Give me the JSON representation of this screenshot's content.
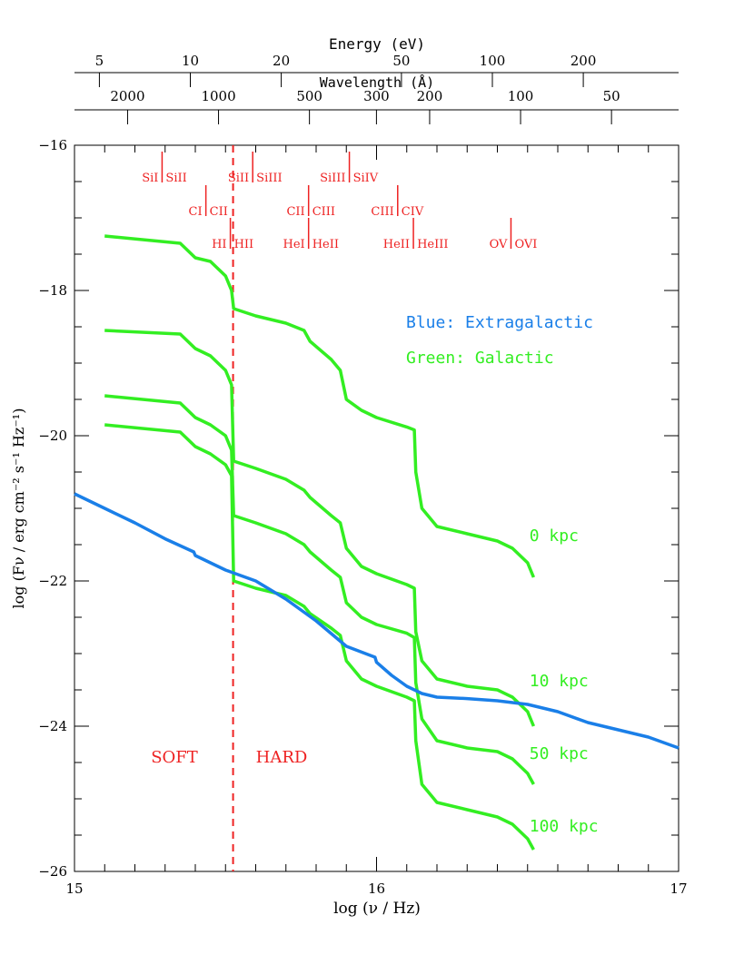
{
  "chart_data": {
    "type": "line",
    "title": "",
    "xlabel": "log (ν / Hz)",
    "ylabel": "log (Fν / erg cm⁻² s⁻¹ Hz⁻¹)",
    "xlim": [
      15,
      17
    ],
    "ylim": [
      -26,
      -16
    ],
    "x_ticks_major": [
      15,
      16,
      17
    ],
    "y_ticks_major": [
      -16,
      -18,
      -20,
      -22,
      -24,
      -26
    ],
    "grid": false,
    "top_axis_energy": {
      "label": "Energy (eV)",
      "ticks": [
        "5",
        "10",
        "20",
        "50",
        "100",
        "200"
      ],
      "values_ev": [
        5,
        10,
        20,
        50,
        100,
        200
      ]
    },
    "top_axis_wavelength": {
      "label": "Wavelength (Å)",
      "ticks": [
        "2000",
        "1000",
        "500",
        "300",
        "200",
        "100",
        "50"
      ],
      "values_angstrom": [
        2000,
        1000,
        500,
        300,
        200,
        100,
        50
      ]
    },
    "legend": [
      {
        "text": "Blue: Extragalactic",
        "color": "#1a7fe8"
      },
      {
        "text": "Green: Galactic",
        "color": "#33ee22"
      }
    ],
    "regions": {
      "divider_x": 15.525,
      "soft_label": "SOFT",
      "hard_label": "HARD"
    },
    "ion_edges": [
      {
        "left": "SiI",
        "right": "SiII",
        "x": 15.29,
        "row": 1
      },
      {
        "left": "SiII",
        "right": "SiIII",
        "x": 15.59,
        "row": 1
      },
      {
        "left": "SiIII",
        "right": "SiIV",
        "x": 15.91,
        "row": 1
      },
      {
        "left": "CI",
        "right": "CII",
        "x": 15.435,
        "row": 2
      },
      {
        "left": "CII",
        "right": "CIII",
        "x": 15.775,
        "row": 2
      },
      {
        "left": "CIII",
        "right": "CIV",
        "x": 16.07,
        "row": 2
      },
      {
        "left": "HI",
        "right": "HII",
        "x": 15.516,
        "row": 3
      },
      {
        "left": "HeI",
        "right": "HeII",
        "x": 15.775,
        "row": 3
      },
      {
        "left": "HeII",
        "right": "HeIII",
        "x": 16.122,
        "row": 3
      },
      {
        "left": "OV",
        "right": "OVI",
        "x": 16.445,
        "row": 3
      }
    ],
    "series": [
      {
        "name": "0 kpc",
        "color": "#33ee22",
        "label_pos": [
          16.5,
          -21.45
        ],
        "points": [
          [
            15.1,
            -17.25
          ],
          [
            15.35,
            -17.35
          ],
          [
            15.4,
            -17.55
          ],
          [
            15.45,
            -17.6
          ],
          [
            15.5,
            -17.8
          ],
          [
            15.52,
            -18.0
          ],
          [
            15.527,
            -18.25
          ],
          [
            15.6,
            -18.35
          ],
          [
            15.7,
            -18.45
          ],
          [
            15.76,
            -18.55
          ],
          [
            15.78,
            -18.7
          ],
          [
            15.85,
            -18.95
          ],
          [
            15.88,
            -19.1
          ],
          [
            15.9,
            -19.5
          ],
          [
            15.95,
            -19.65
          ],
          [
            16.0,
            -19.75
          ],
          [
            16.1,
            -19.88
          ],
          [
            16.125,
            -19.92
          ],
          [
            16.13,
            -20.5
          ],
          [
            16.15,
            -21.0
          ],
          [
            16.2,
            -21.25
          ],
          [
            16.3,
            -21.35
          ],
          [
            16.4,
            -21.45
          ],
          [
            16.45,
            -21.55
          ],
          [
            16.5,
            -21.75
          ],
          [
            16.52,
            -21.95
          ]
        ]
      },
      {
        "name": "10 kpc",
        "color": "#33ee22",
        "label_pos": [
          16.5,
          -23.45
        ],
        "points": [
          [
            15.1,
            -18.55
          ],
          [
            15.35,
            -18.6
          ],
          [
            15.4,
            -18.8
          ],
          [
            15.45,
            -18.9
          ],
          [
            15.5,
            -19.1
          ],
          [
            15.52,
            -19.3
          ],
          [
            15.527,
            -20.35
          ],
          [
            15.6,
            -20.45
          ],
          [
            15.7,
            -20.6
          ],
          [
            15.76,
            -20.75
          ],
          [
            15.78,
            -20.85
          ],
          [
            15.85,
            -21.1
          ],
          [
            15.88,
            -21.2
          ],
          [
            15.9,
            -21.55
          ],
          [
            15.95,
            -21.8
          ],
          [
            16.0,
            -21.9
          ],
          [
            16.1,
            -22.05
          ],
          [
            16.125,
            -22.1
          ],
          [
            16.13,
            -22.7
          ],
          [
            16.15,
            -23.1
          ],
          [
            16.2,
            -23.35
          ],
          [
            16.3,
            -23.45
          ],
          [
            16.4,
            -23.5
          ],
          [
            16.45,
            -23.6
          ],
          [
            16.5,
            -23.8
          ],
          [
            16.52,
            -24.0
          ]
        ]
      },
      {
        "name": "50 kpc",
        "color": "#33ee22",
        "label_pos": [
          16.5,
          -24.45
        ],
        "points": [
          [
            15.1,
            -19.45
          ],
          [
            15.35,
            -19.55
          ],
          [
            15.4,
            -19.75
          ],
          [
            15.45,
            -19.85
          ],
          [
            15.5,
            -20.0
          ],
          [
            15.52,
            -20.2
          ],
          [
            15.527,
            -21.1
          ],
          [
            15.6,
            -21.2
          ],
          [
            15.7,
            -21.35
          ],
          [
            15.76,
            -21.5
          ],
          [
            15.78,
            -21.6
          ],
          [
            15.85,
            -21.85
          ],
          [
            15.88,
            -21.95
          ],
          [
            15.9,
            -22.3
          ],
          [
            15.95,
            -22.5
          ],
          [
            16.0,
            -22.6
          ],
          [
            16.1,
            -22.72
          ],
          [
            16.125,
            -22.78
          ],
          [
            16.13,
            -23.4
          ],
          [
            16.15,
            -23.9
          ],
          [
            16.2,
            -24.2
          ],
          [
            16.3,
            -24.3
          ],
          [
            16.4,
            -24.35
          ],
          [
            16.45,
            -24.45
          ],
          [
            16.5,
            -24.65
          ],
          [
            16.52,
            -24.8
          ]
        ]
      },
      {
        "name": "100 kpc",
        "color": "#33ee22",
        "label_pos": [
          16.5,
          -25.45
        ],
        "points": [
          [
            15.1,
            -19.85
          ],
          [
            15.35,
            -19.95
          ],
          [
            15.4,
            -20.15
          ],
          [
            15.45,
            -20.25
          ],
          [
            15.5,
            -20.4
          ],
          [
            15.52,
            -20.55
          ],
          [
            15.527,
            -22.0
          ],
          [
            15.6,
            -22.1
          ],
          [
            15.7,
            -22.2
          ],
          [
            15.76,
            -22.35
          ],
          [
            15.78,
            -22.45
          ],
          [
            15.85,
            -22.65
          ],
          [
            15.88,
            -22.75
          ],
          [
            15.9,
            -23.1
          ],
          [
            15.95,
            -23.35
          ],
          [
            16.0,
            -23.45
          ],
          [
            16.1,
            -23.6
          ],
          [
            16.125,
            -23.65
          ],
          [
            16.13,
            -24.2
          ],
          [
            16.15,
            -24.8
          ],
          [
            16.2,
            -25.05
          ],
          [
            16.3,
            -25.15
          ],
          [
            16.4,
            -25.25
          ],
          [
            16.45,
            -25.35
          ],
          [
            16.5,
            -25.55
          ],
          [
            16.52,
            -25.7
          ]
        ]
      },
      {
        "name": "",
        "color": "#1a7fe8",
        "points": [
          [
            15.0,
            -20.8
          ],
          [
            15.1,
            -21.0
          ],
          [
            15.2,
            -21.2
          ],
          [
            15.3,
            -21.42
          ],
          [
            15.395,
            -21.6
          ],
          [
            15.4,
            -21.65
          ],
          [
            15.5,
            -21.85
          ],
          [
            15.6,
            -22.0
          ],
          [
            15.7,
            -22.25
          ],
          [
            15.8,
            -22.55
          ],
          [
            15.9,
            -22.9
          ],
          [
            15.995,
            -23.05
          ],
          [
            16.0,
            -23.12
          ],
          [
            16.05,
            -23.3
          ],
          [
            16.1,
            -23.45
          ],
          [
            16.15,
            -23.55
          ],
          [
            16.2,
            -23.6
          ],
          [
            16.3,
            -23.62
          ],
          [
            16.4,
            -23.65
          ],
          [
            16.5,
            -23.7
          ],
          [
            16.6,
            -23.8
          ],
          [
            16.7,
            -23.95
          ],
          [
            16.8,
            -24.05
          ],
          [
            16.9,
            -24.15
          ],
          [
            17.0,
            -24.3
          ]
        ]
      }
    ]
  }
}
